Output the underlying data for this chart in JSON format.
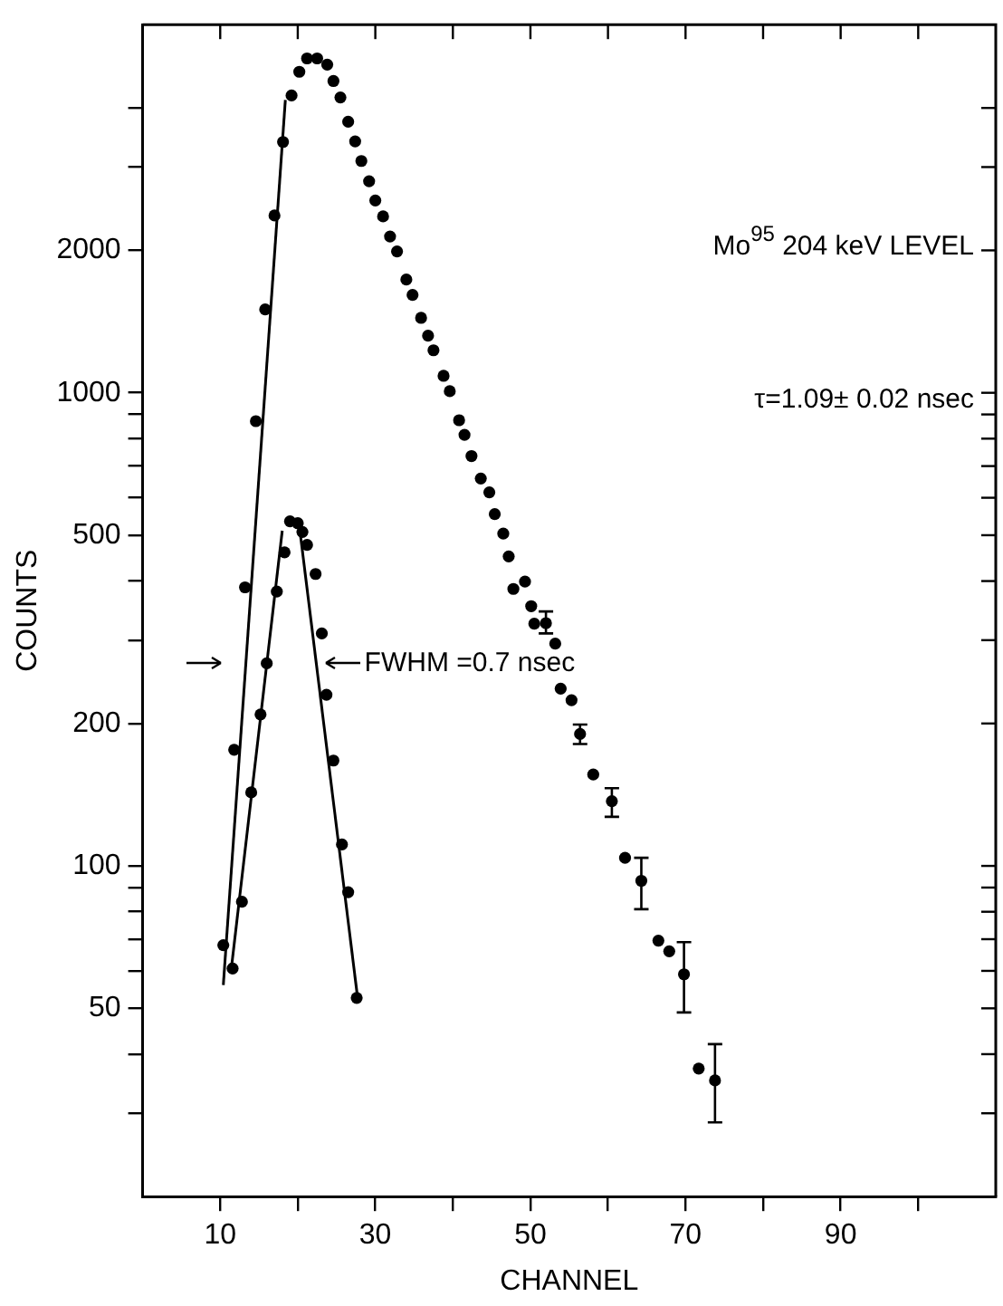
{
  "chart_data": {
    "type": "scatter",
    "xlabel": "CHANNEL",
    "ylabel": "COUNTS",
    "log": "y",
    "xlim": [
      0,
      110
    ],
    "ylim": [
      20,
      6000
    ],
    "xticks": [
      10,
      {
        "value": 20,
        "label": null
      },
      30,
      {
        "value": 40,
        "label": null
      },
      50,
      {
        "value": 60,
        "label": null
      },
      70,
      {
        "value": 80,
        "label": null
      },
      90,
      {
        "value": 100,
        "label": null
      }
    ],
    "yticks": [
      {
        "value": 30,
        "label": null
      },
      {
        "value": 40,
        "label": null
      },
      50,
      {
        "value": 60,
        "label": null
      },
      {
        "value": 70,
        "label": null
      },
      {
        "value": 80,
        "label": null
      },
      {
        "value": 90,
        "label": null
      },
      100,
      200,
      {
        "value": 300,
        "label": null
      },
      {
        "value": 400,
        "label": null
      },
      500,
      {
        "value": 600,
        "label": null
      },
      {
        "value": 700,
        "label": null
      },
      {
        "value": 800,
        "label": null
      },
      {
        "value": 900,
        "label": null
      },
      1000,
      2000,
      {
        "value": 3000,
        "label": null
      },
      {
        "value": 4000,
        "label": null
      }
    ],
    "grid": false,
    "legend": false,
    "series": [
      {
        "type": "scatter",
        "color": "#000000",
        "marker": "circle",
        "x": [
          10.4,
          11.8,
          13.2,
          14.6,
          15.8,
          17.0,
          18.1,
          19.2,
          20.2,
          21.2,
          22.5,
          23.8,
          24.6,
          25.5,
          26.5,
          27.4,
          28.2,
          29.2,
          30.0,
          31.0,
          31.9,
          32.8,
          34.0,
          34.8,
          35.9,
          36.8,
          37.5,
          38.8,
          39.6,
          40.8,
          41.5,
          42.4,
          43.6,
          44.7,
          45.4,
          46.5,
          47.2,
          47.8,
          49.3,
          50.1,
          50.5,
          52.0,
          53.2,
          53.9,
          55.3,
          56.4,
          58.1,
          60.5,
          62.2,
          64.3,
          66.5,
          67.9,
          69.8,
          71.7,
          73.8
        ],
        "values": [
          68,
          176,
          388,
          871,
          1500,
          2370,
          3390,
          4250,
          4770,
          5090,
          5090,
          4940,
          4560,
          4210,
          3740,
          3400,
          3090,
          2800,
          2550,
          2360,
          2140,
          1990,
          1735,
          1610,
          1440,
          1320,
          1230,
          1086,
          1008,
          875,
          815,
          735,
          659,
          616,
          554,
          504,
          451,
          385,
          399,
          354,
          325,
          326,
          295,
          237,
          224,
          190,
          156,
          137,
          104,
          93,
          69.5,
          66,
          59,
          37.3,
          35.2
        ],
        "errors": [
          null,
          null,
          null,
          null,
          null,
          null,
          null,
          null,
          null,
          null,
          null,
          null,
          null,
          null,
          null,
          null,
          null,
          null,
          null,
          null,
          null,
          null,
          null,
          null,
          null,
          null,
          null,
          null,
          null,
          null,
          null,
          null,
          null,
          null,
          null,
          null,
          null,
          null,
          null,
          null,
          null,
          [
            310,
            345
          ],
          null,
          null,
          null,
          [
            181,
            199
          ],
          null,
          [
            127,
            146
          ],
          null,
          [
            81,
            104
          ],
          null,
          null,
          [
            49,
            69
          ],
          null,
          [
            28.7,
            42
          ]
        ]
      },
      {
        "type": "scatter",
        "color": "#000000",
        "marker": "circle",
        "x": [
          11.6,
          12.8,
          14.0,
          15.2,
          16.0,
          17.3,
          18.3,
          19.0,
          20.0,
          20.6,
          21.2,
          22.3,
          23.1,
          23.7,
          24.6,
          25.7,
          26.5,
          27.6
        ],
        "values": [
          60.7,
          84,
          143,
          209,
          268,
          380,
          460,
          535,
          530,
          508,
          477,
          414,
          310,
          230,
          167,
          111,
          88,
          52.6
        ]
      },
      {
        "type": "line",
        "color": "#000000",
        "marker": "none",
        "x": [
          10.4,
          18.4
        ],
        "values": [
          56,
          4160
        ]
      },
      {
        "type": "line",
        "color": "#000000",
        "marker": "none",
        "x": [
          11.4,
          18.0
        ],
        "values": [
          60,
          511
        ]
      },
      {
        "type": "line",
        "color": "#000000",
        "marker": "none",
        "x": [
          20.2,
          27.8
        ],
        "values": [
          523,
          51.3
        ]
      }
    ],
    "annotations": [
      "Mo$^{95}$ 204 keV LEVEL",
      "τ=1.09± 0.02 nsec",
      "FWHM =0.7 nsec"
    ]
  }
}
